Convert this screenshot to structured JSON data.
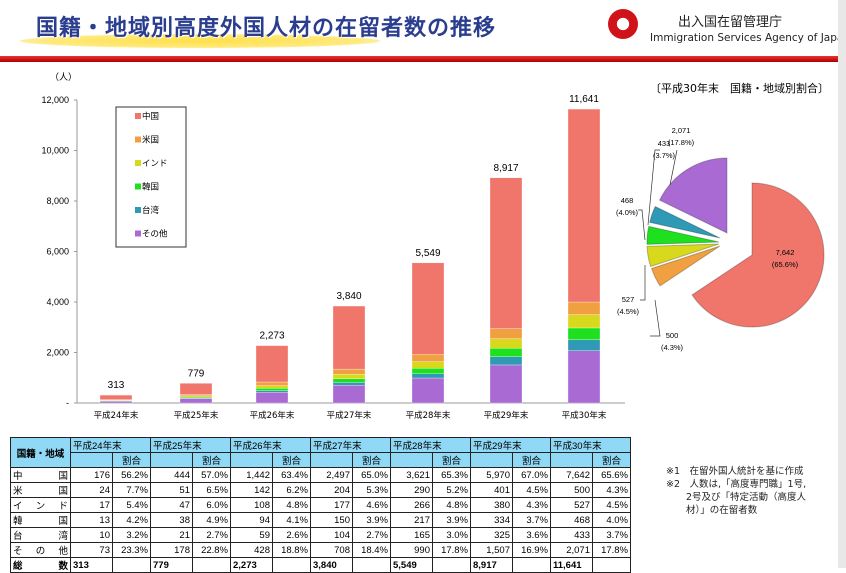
{
  "header": {
    "title": "国籍・地域別高度外国人材の在留者数の推移",
    "agency_jp": "出入国在留管理庁",
    "agency_en": "Immigration Services Agency of Japan"
  },
  "colors": {
    "中国": "#f0766b",
    "米国": "#f0a040",
    "インド": "#d8d81c",
    "韓国": "#1ee01e",
    "台湾": "#2e9ab5",
    "その他": "#a96ad4"
  },
  "chart_data": [
    {
      "type": "bar",
      "stacked": true,
      "ylabel": "（人）",
      "ylim": [
        0,
        12000
      ],
      "yticks": [
        0,
        2000,
        4000,
        6000,
        8000,
        10000,
        12000
      ],
      "ytick_labels": [
        "-",
        "2,000",
        "4,000",
        "6,000",
        "8,000",
        "10,000",
        "12,000"
      ],
      "categories": [
        "平成24年末",
        "平成25年末",
        "平成26年末",
        "平成27年末",
        "平成28年末",
        "平成29年末",
        "平成30年末"
      ],
      "series": [
        {
          "name": "その他",
          "values": [
            73,
            178,
            428,
            708,
            990,
            1507,
            2071
          ]
        },
        {
          "name": "台湾",
          "values": [
            10,
            21,
            59,
            104,
            165,
            325,
            433
          ]
        },
        {
          "name": "韓国",
          "values": [
            13,
            38,
            94,
            150,
            217,
            334,
            468
          ]
        },
        {
          "name": "インド",
          "values": [
            17,
            47,
            108,
            177,
            266,
            380,
            527
          ]
        },
        {
          "name": "米国",
          "values": [
            24,
            51,
            142,
            204,
            290,
            401,
            500
          ]
        },
        {
          "name": "中国",
          "values": [
            176,
            444,
            1442,
            2497,
            3621,
            5970,
            7642
          ]
        }
      ],
      "totals": [
        "313",
        "779",
        "2,273",
        "3,840",
        "5,549",
        "8,917",
        "11,641"
      ],
      "legend": [
        "中国",
        "米国",
        "インド",
        "韓国",
        "台湾",
        "その他"
      ],
      "legend_placement": "top-left"
    },
    {
      "type": "pie",
      "title": "〔平成30年末　国籍・地域別割合〕",
      "slices": [
        {
          "name": "中国",
          "value": 7642,
          "label": "7,642",
          "pct": "(65.6%)"
        },
        {
          "name": "米国",
          "value": 500,
          "label": "500",
          "pct": "(4.3%)"
        },
        {
          "name": "インド",
          "value": 527,
          "label": "527",
          "pct": "(4.5%)"
        },
        {
          "name": "韓国",
          "value": 468,
          "label": "468",
          "pct": "(4.0%)"
        },
        {
          "name": "台湾",
          "value": 433,
          "label": "433",
          "pct": "(3.7%)"
        },
        {
          "name": "その他",
          "value": 2071,
          "label": "2,071",
          "pct": "(17.8%)"
        }
      ]
    }
  ],
  "table": {
    "corner": "国籍・地域",
    "years": [
      "平成24年末",
      "平成25年末",
      "平成26年末",
      "平成27年末",
      "平成28年末",
      "平成29年末",
      "平成30年末"
    ],
    "ratio_label": "割合",
    "rows": [
      {
        "label": "中国",
        "cells": [
          "176",
          "56.2%",
          "444",
          "57.0%",
          "1,442",
          "63.4%",
          "2,497",
          "65.0%",
          "3,621",
          "65.3%",
          "5,970",
          "67.0%",
          "7,642",
          "65.6%"
        ]
      },
      {
        "label": "米国",
        "cells": [
          "24",
          "7.7%",
          "51",
          "6.5%",
          "142",
          "6.2%",
          "204",
          "5.3%",
          "290",
          "5.2%",
          "401",
          "4.5%",
          "500",
          "4.3%"
        ]
      },
      {
        "label": "インド",
        "cells": [
          "17",
          "5.4%",
          "47",
          "6.0%",
          "108",
          "4.8%",
          "177",
          "4.6%",
          "266",
          "4.8%",
          "380",
          "4.3%",
          "527",
          "4.5%"
        ]
      },
      {
        "label": "韓国",
        "cells": [
          "13",
          "4.2%",
          "38",
          "4.9%",
          "94",
          "4.1%",
          "150",
          "3.9%",
          "217",
          "3.9%",
          "334",
          "3.7%",
          "468",
          "4.0%"
        ]
      },
      {
        "label": "台湾",
        "cells": [
          "10",
          "3.2%",
          "21",
          "2.7%",
          "59",
          "2.6%",
          "104",
          "2.7%",
          "165",
          "3.0%",
          "325",
          "3.6%",
          "433",
          "3.7%"
        ]
      },
      {
        "label": "その他",
        "cells": [
          "73",
          "23.3%",
          "178",
          "22.8%",
          "428",
          "18.8%",
          "708",
          "18.4%",
          "990",
          "17.8%",
          "1,507",
          "16.9%",
          "2,071",
          "17.8%"
        ]
      }
    ],
    "total": {
      "label": "総数",
      "cells": [
        "313",
        "",
        "779",
        "",
        "2,273",
        "",
        "3,840",
        "",
        "5,549",
        "",
        "8,917",
        "",
        "11,641",
        ""
      ]
    }
  },
  "notes": [
    "※1　在留外国人統計を基に作成",
    "※2　人数は,「高度専門職」1号,",
    "2号及び「特定活動（高度人",
    "材）」の在留者数"
  ]
}
